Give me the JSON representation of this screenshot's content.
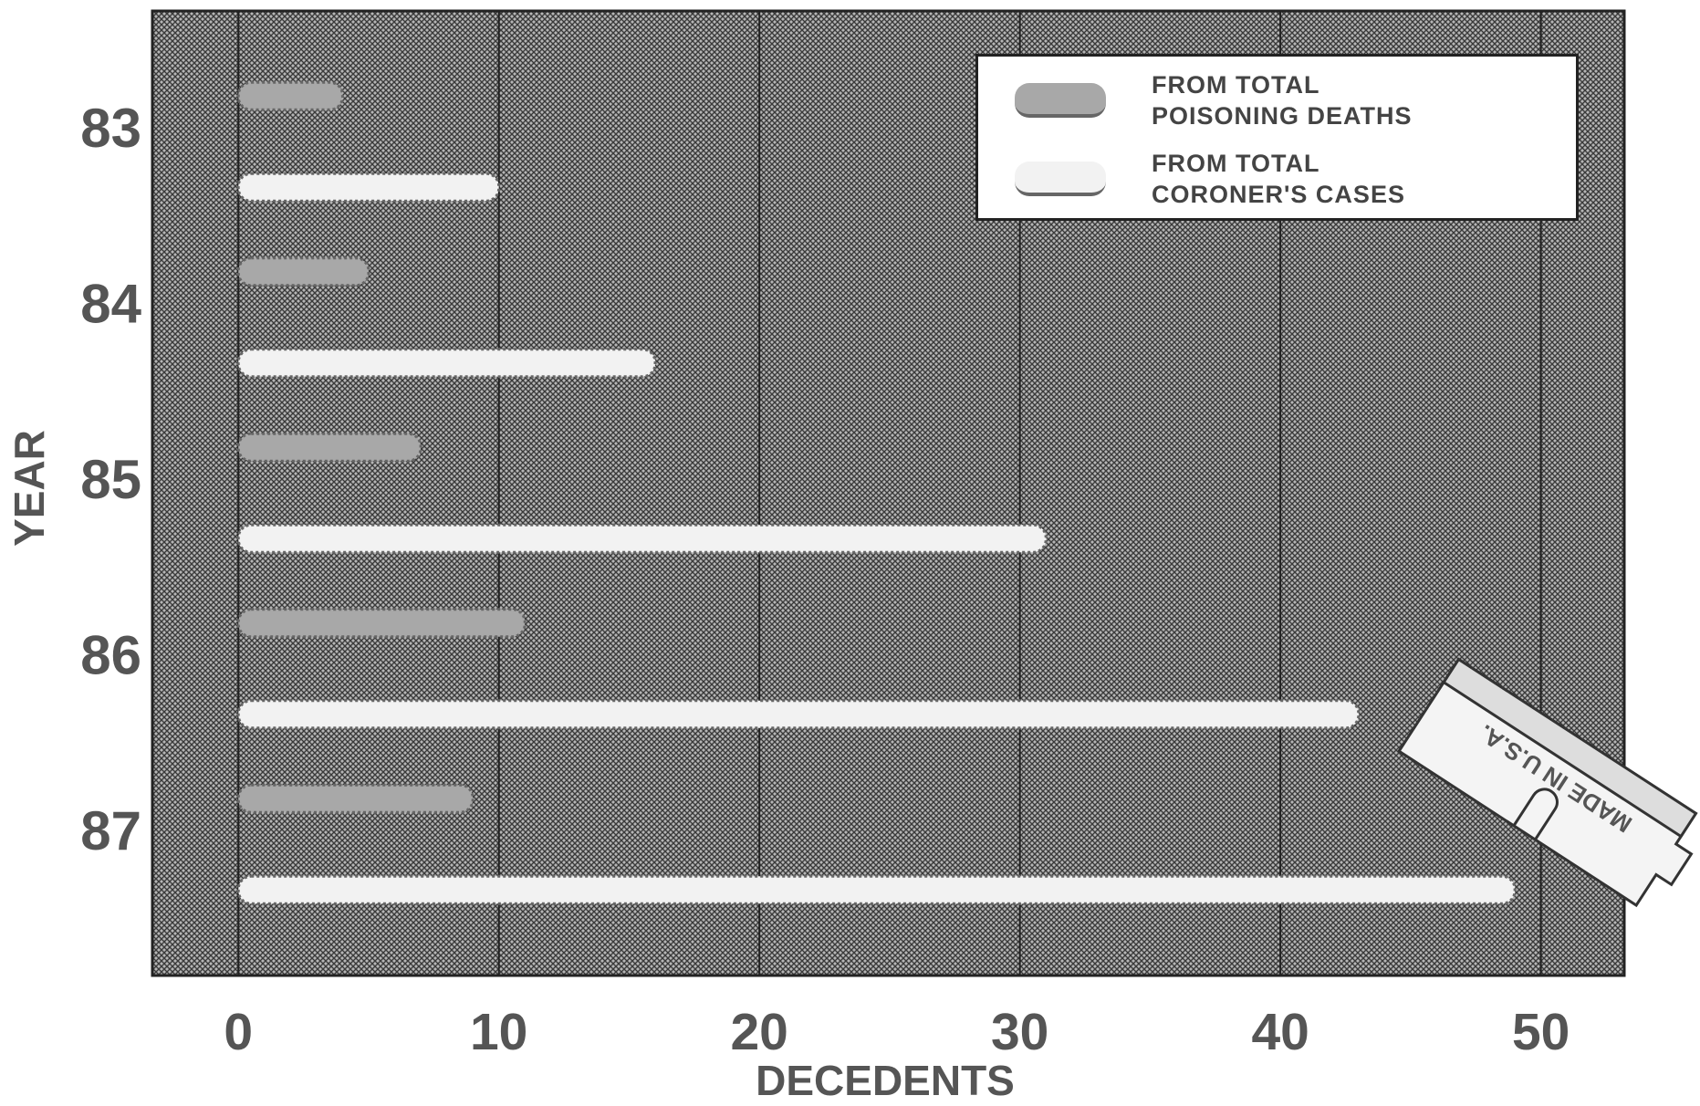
{
  "chart_data": {
    "type": "hbar",
    "x_label": "DECEDENTS",
    "y_label": "YEAR",
    "categories": [
      "83",
      "84",
      "85",
      "86",
      "87"
    ],
    "series": [
      {
        "name": "FROM TOTAL POISONING DEATHS",
        "color": "#a8a8a8",
        "values": [
          4,
          5,
          7,
          11,
          9
        ]
      },
      {
        "name": "FROM TOTAL CORONER'S CASES",
        "color": "#f2f2f2",
        "values": [
          10,
          16,
          31,
          43,
          49
        ]
      }
    ],
    "xlim": [
      -3.3,
      53.2
    ],
    "xticks": [
      0,
      10,
      20,
      30,
      40,
      50
    ],
    "grid": true,
    "legend": "upper right",
    "annotation": "MADE IN U.S.A."
  }
}
